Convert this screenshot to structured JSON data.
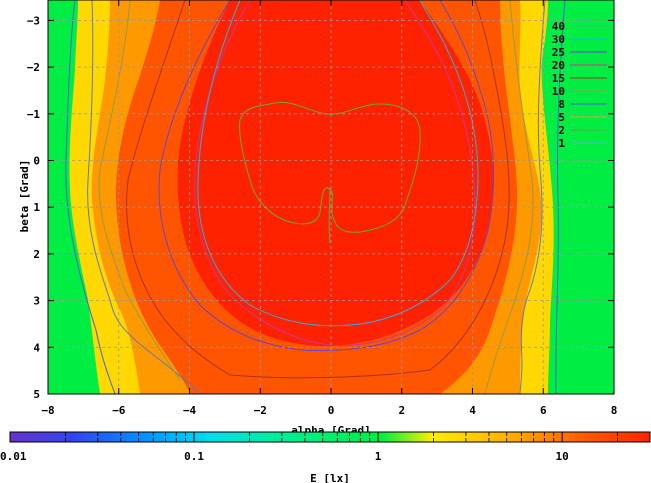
{
  "chart_data": {
    "type": "heatmap",
    "xlabel": "alpha [Grad]",
    "ylabel": "beta [Grad]",
    "xlim": [
      -8,
      8
    ],
    "ylim": [
      -3.4,
      5
    ],
    "x_ticks": [
      -8,
      -6,
      -4,
      -2,
      0,
      2,
      4,
      6,
      8
    ],
    "y_ticks": [
      -3,
      -2,
      -1,
      0,
      1,
      2,
      3,
      4,
      5
    ],
    "y_inverted": true,
    "grid": true,
    "contour_legend_position": "top-right",
    "contour_levels": [
      {
        "label": "40",
        "color": "#33cc66"
      },
      {
        "label": "30",
        "color": "#33aadd"
      },
      {
        "label": "25",
        "color": "#6644cc"
      },
      {
        "label": "20",
        "color": "#cc3399"
      },
      {
        "label": "15",
        "color": "#aa3322"
      },
      {
        "label": "10",
        "color": "#999944"
      },
      {
        "label": "8",
        "color": "#4466cc"
      },
      {
        "label": "5",
        "color": "#ddaa33"
      },
      {
        "label": "2",
        "color": "#66aa33"
      },
      {
        "label": "1",
        "color": "#66aacc"
      }
    ],
    "colorbar": {
      "label": "E [lx]",
      "scale": "log",
      "range": [
        0.01,
        30
      ],
      "tick_labels": [
        "0.01",
        "0.1",
        "1",
        "10"
      ],
      "tick_values": [
        0.01,
        0.1,
        1,
        10
      ],
      "stops": [
        {
          "value": 0.01,
          "color": "#6633cc"
        },
        {
          "value": 0.02,
          "color": "#3344ee"
        },
        {
          "value": 0.05,
          "color": "#0099ff"
        },
        {
          "value": 0.1,
          "color": "#00ddee"
        },
        {
          "value": 0.3,
          "color": "#00ee99"
        },
        {
          "value": 1,
          "color": "#00ee44"
        },
        {
          "value": 2,
          "color": "#ffee00"
        },
        {
          "value": 5,
          "color": "#ffaa00"
        },
        {
          "value": 10,
          "color": "#ff6600"
        },
        {
          "value": 30,
          "color": "#ff2200"
        }
      ]
    },
    "regions": [
      {
        "name": "green",
        "value": 1.5,
        "color": "#00ee44"
      },
      {
        "name": "yellow",
        "value": 3,
        "color": "#ffd800"
      },
      {
        "name": "orange",
        "value": 6,
        "color": "#ff9900"
      },
      {
        "name": "red-orange",
        "value": 12,
        "color": "#ff5500"
      },
      {
        "name": "red",
        "value": 25,
        "color": "#ff2200"
      }
    ]
  }
}
